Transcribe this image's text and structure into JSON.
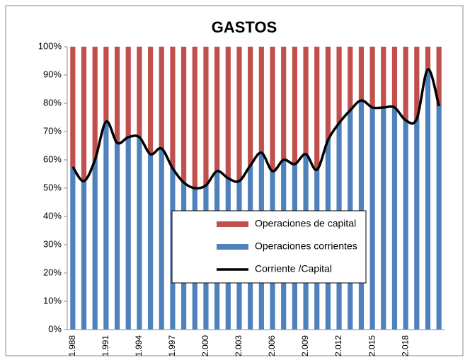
{
  "chart_data": {
    "type": "stacked_bar_line",
    "title": "GASTOS",
    "categories": [
      "1.988",
      null,
      null,
      "1.991",
      null,
      null,
      "1.994",
      null,
      null,
      "1.997",
      null,
      null,
      "2.000",
      null,
      null,
      "2.003",
      null,
      null,
      "2.006",
      null,
      null,
      "2.009",
      null,
      null,
      "2.012",
      null,
      null,
      "2.015",
      null,
      null,
      "2.018",
      null,
      null,
      null
    ],
    "series": [
      {
        "name": "Operaciones corrientes",
        "color": "#4f81bd",
        "kind": "bar",
        "values": [
          57.5,
          52.5,
          60,
          73.5,
          66,
          68,
          68,
          62,
          64,
          57,
          52,
          50,
          51,
          56,
          53.5,
          52.5,
          58,
          62.5,
          56,
          60,
          58.5,
          62,
          56.5,
          67,
          73,
          77.5,
          81,
          78.5,
          78.5,
          78.5,
          74,
          74.5,
          92,
          79
        ]
      },
      {
        "name": "Operaciones de capital",
        "color": "#c0504d",
        "kind": "bar",
        "values": [
          42.5,
          47.5,
          40,
          26.5,
          34,
          32,
          32,
          38,
          36,
          43,
          48,
          50,
          49,
          44,
          46.5,
          47.5,
          42,
          37.5,
          44,
          40,
          41.5,
          38,
          43.5,
          33,
          27,
          22.5,
          19,
          21.5,
          21.5,
          21.5,
          26,
          25.5,
          8,
          21
        ]
      },
      {
        "name": "Corriente /Capital",
        "color": "#000000",
        "kind": "line",
        "values": [
          57.5,
          52.5,
          60,
          73.5,
          66,
          68,
          68,
          62,
          64,
          57,
          52,
          50,
          51,
          56,
          53.5,
          52.5,
          58,
          62.5,
          56,
          60,
          58.5,
          62,
          56.5,
          67,
          73,
          77.5,
          81,
          78.5,
          78.5,
          78.5,
          74,
          74.5,
          92,
          79
        ]
      }
    ],
    "ylim": [
      0,
      100
    ],
    "yticks": [
      {
        "value": 0,
        "label": "0%"
      },
      {
        "value": 10,
        "label": "10%"
      },
      {
        "value": 20,
        "label": "20%"
      },
      {
        "value": 30,
        "label": "30%"
      },
      {
        "value": 40,
        "label": "40%"
      },
      {
        "value": 50,
        "label": "50%"
      },
      {
        "value": 60,
        "label": "60%"
      },
      {
        "value": 70,
        "label": "70%"
      },
      {
        "value": 80,
        "label": "80%"
      },
      {
        "value": 90,
        "label": "90%"
      },
      {
        "value": 100,
        "label": "100%"
      }
    ],
    "grid": false,
    "legend": "center"
  }
}
